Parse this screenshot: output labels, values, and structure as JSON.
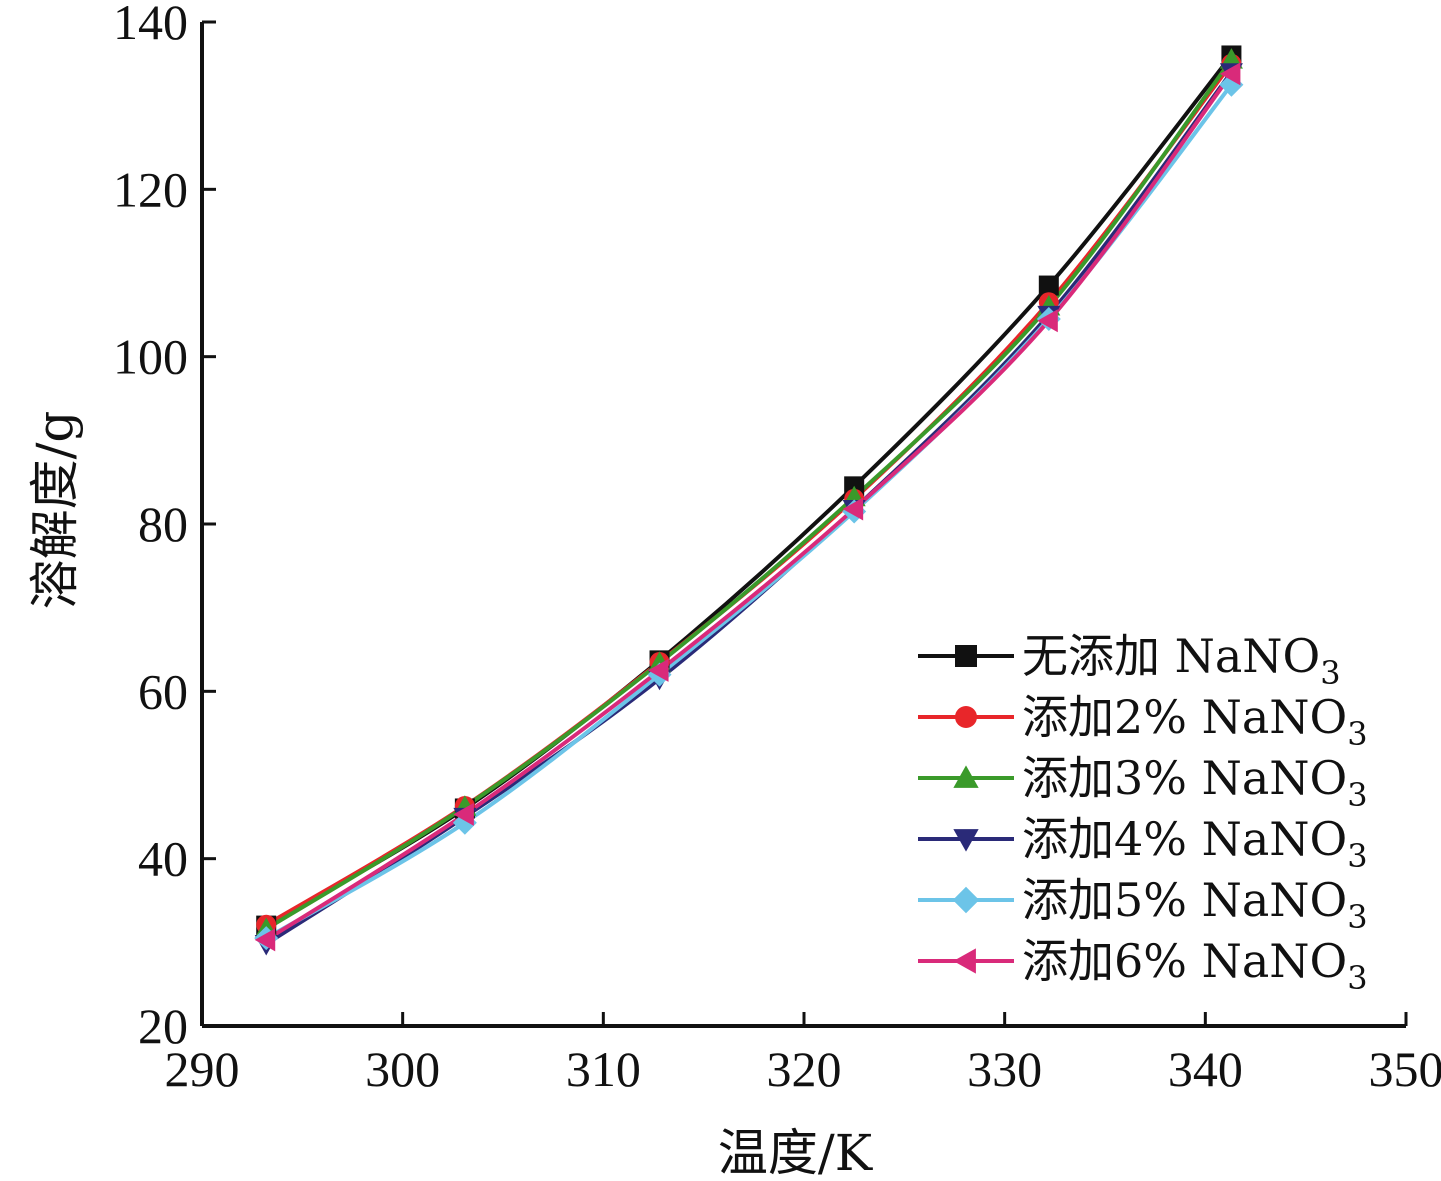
{
  "chart_data": {
    "type": "line",
    "title": "",
    "xlabel": "温度/K",
    "ylabel": "溶解度/g",
    "xlim": [
      290,
      350
    ],
    "ylim": [
      20,
      140
    ],
    "xticks": [
      290,
      300,
      310,
      320,
      330,
      340,
      350
    ],
    "yticks": [
      20,
      40,
      60,
      80,
      100,
      120,
      140
    ],
    "grid": false,
    "legend_position": "bottom-right",
    "x": [
      293.2,
      303.1,
      312.8,
      322.5,
      332.2,
      341.3
    ],
    "series": [
      {
        "name": "无添加 NaNO3",
        "label_main": "无添加 NaNO",
        "label_sub": "3",
        "color": "#111111",
        "marker": "square",
        "values": [
          32.0,
          46.0,
          63.7,
          84.5,
          108.5,
          136.0
        ]
      },
      {
        "name": "添加2% NaNO3",
        "label_main": "添加2% NaNO",
        "label_sub": "3",
        "color": "#e8262a",
        "marker": "circle",
        "values": [
          32.1,
          46.3,
          63.5,
          83.0,
          106.5,
          135.0
        ]
      },
      {
        "name": "添加3% NaNO3",
        "label_main": "添加3% NaNO",
        "label_sub": "3",
        "color": "#3a9a2a",
        "marker": "triangle-up",
        "values": [
          31.6,
          46.2,
          63.4,
          83.2,
          106.0,
          135.5
        ]
      },
      {
        "name": "添加4% NaNO3",
        "label_main": "添加4% NaNO",
        "label_sub": "3",
        "color": "#2a2a78",
        "marker": "triangle-down",
        "values": [
          29.8,
          45.0,
          61.5,
          81.8,
          105.0,
          134.0
        ]
      },
      {
        "name": "添加5% NaNO3",
        "label_main": "添加5% NaNO",
        "label_sub": "3",
        "color": "#6cc4e8",
        "marker": "diamond",
        "values": [
          30.5,
          44.3,
          62.0,
          81.5,
          104.5,
          132.5
        ]
      },
      {
        "name": "添加6% NaNO3",
        "label_main": "添加6% NaNO",
        "label_sub": "3",
        "color": "#d92a7a",
        "marker": "triangle-left",
        "values": [
          30.3,
          45.3,
          62.5,
          81.8,
          104.3,
          133.8
        ]
      }
    ]
  }
}
